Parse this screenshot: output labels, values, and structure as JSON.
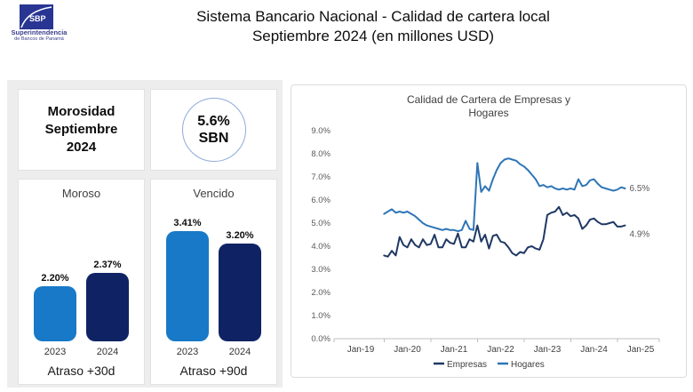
{
  "header": {
    "logo": {
      "abbr": "SBP",
      "org_line1": "Superintendencia",
      "org_line2": "de Bancos de Panamá"
    },
    "title_line1": "Sistema Bancario Nacional - Calidad de cartera local",
    "title_line2": "Septiembre 2024 (en millones USD)"
  },
  "summary": {
    "period_label": "Morosidad Septiembre 2024",
    "sbn_badge": {
      "value": "5.6%",
      "label": "SBN"
    }
  },
  "colors": {
    "bar_2023": "#1779c7",
    "bar_2024": "#0f2364",
    "empresas_line": "#1f3864",
    "hogares_line": "#2e75b6",
    "panel_bg": "#ededed",
    "circle_border": "#8faadc",
    "axis": "#bfbfbf",
    "axis_text": "#595959"
  },
  "chart_data": [
    {
      "type": "bar",
      "title": "Moroso",
      "caption": "Atraso +30d",
      "categories": [
        "2023",
        "2024"
      ],
      "values": [
        2.2,
        2.37
      ],
      "value_labels": [
        "2.20%",
        "2.37%"
      ]
    },
    {
      "type": "bar",
      "title": "Vencido",
      "caption": "Atraso +90d",
      "categories": [
        "2023",
        "2024"
      ],
      "values": [
        3.41,
        3.2
      ],
      "value_labels": [
        "3.41%",
        "3.20%"
      ]
    },
    {
      "type": "line",
      "title_line1": "Calidad de Cartera de Empresas y",
      "title_line2": "Hogares",
      "frequency": "monthly",
      "x_start": "Jul-2019",
      "x_end": "Sep-2024",
      "xticks": [
        "Jan-19",
        "Jan-20",
        "Jan-21",
        "Jan-22",
        "Jan-23",
        "Jan-24",
        "Jan-25"
      ],
      "yticks": [
        "0.0%",
        "1.0%",
        "2.0%",
        "3.0%",
        "4.0%",
        "5.0%",
        "6.0%",
        "7.0%",
        "8.0%",
        "9.0%"
      ],
      "ylim": [
        0,
        9
      ],
      "grid": false,
      "legend_position": "bottom",
      "series": [
        {
          "name": "Empresas",
          "end_label": "4.9%",
          "values": [
            3.6,
            3.55,
            3.8,
            3.6,
            4.4,
            4.05,
            3.95,
            4.3,
            4.05,
            3.95,
            4.3,
            4.05,
            4.1,
            4.5,
            3.95,
            3.95,
            4.3,
            4.15,
            4.1,
            4.55,
            3.95,
            3.95,
            4.3,
            4.2,
            4.9,
            4.2,
            4.5,
            3.9,
            4.45,
            4.5,
            4.2,
            4.15,
            3.95,
            3.7,
            3.6,
            3.75,
            3.7,
            3.95,
            4.0,
            3.9,
            3.85,
            4.3,
            5.35,
            5.45,
            5.5,
            5.7,
            5.35,
            5.45,
            5.3,
            5.35,
            5.2,
            4.75,
            4.9,
            5.15,
            5.2,
            5.05,
            4.95,
            4.95,
            5.0,
            5.05,
            4.85,
            4.85,
            4.9
          ]
        },
        {
          "name": "Hogares",
          "end_label": "6.5%",
          "values": [
            5.4,
            5.5,
            5.6,
            5.45,
            5.5,
            5.45,
            5.5,
            5.4,
            5.3,
            5.15,
            5.0,
            4.9,
            4.85,
            4.8,
            4.75,
            4.7,
            4.75,
            4.7,
            4.7,
            4.65,
            4.7,
            5.1,
            4.75,
            4.7,
            7.6,
            6.35,
            6.6,
            6.4,
            6.9,
            7.3,
            7.6,
            7.75,
            7.8,
            7.75,
            7.7,
            7.55,
            7.45,
            7.3,
            7.1,
            6.9,
            6.6,
            6.65,
            6.55,
            6.6,
            6.5,
            6.45,
            6.5,
            6.45,
            6.5,
            6.45,
            6.9,
            6.6,
            6.65,
            6.85,
            6.9,
            6.7,
            6.55,
            6.5,
            6.45,
            6.4,
            6.45,
            6.55,
            6.5
          ]
        }
      ]
    }
  ]
}
